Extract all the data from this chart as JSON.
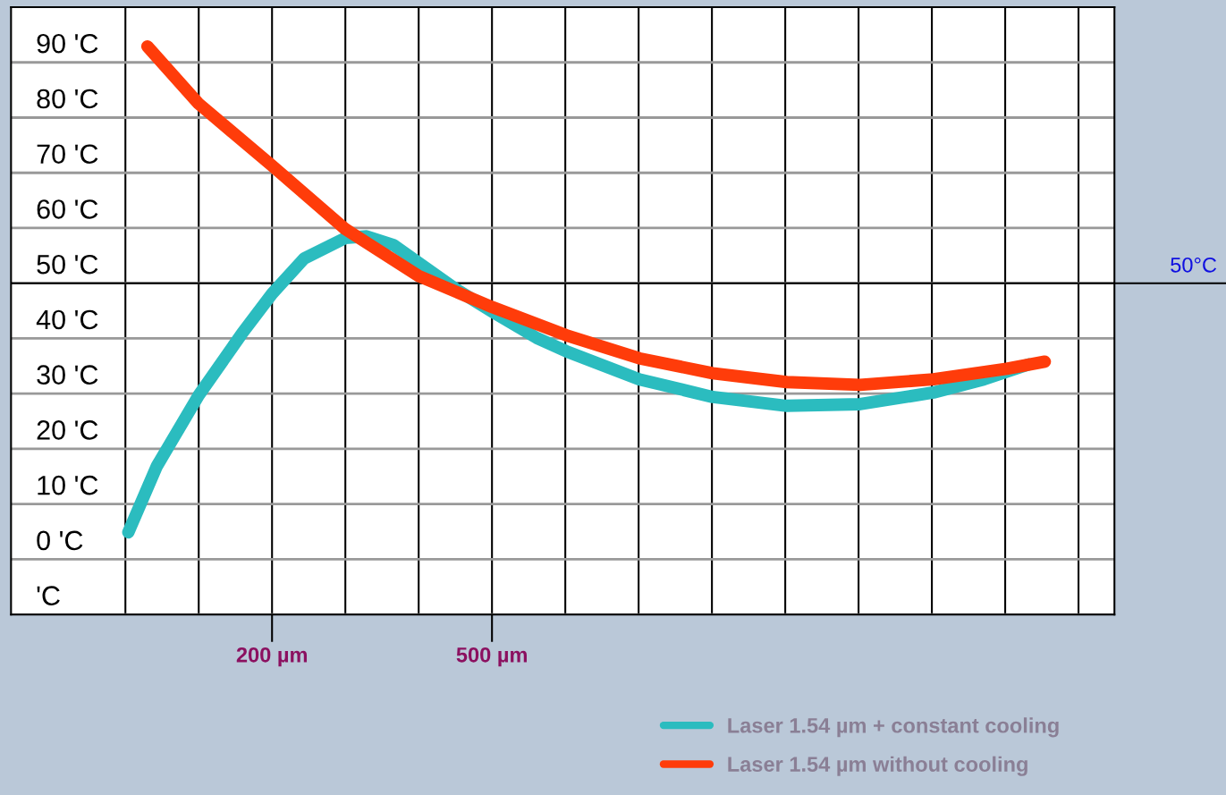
{
  "chart_data": {
    "type": "line",
    "xlim": [
      -156,
      1349
    ],
    "ylim": [
      -10,
      100
    ],
    "xticks": [
      {
        "value": 0,
        "label": null
      },
      {
        "value": 100,
        "label": null
      },
      {
        "value": 200,
        "label": "200 µm"
      },
      {
        "value": 300,
        "label": null
      },
      {
        "value": 400,
        "label": null
      },
      {
        "value": 500,
        "label": "500 µm"
      },
      {
        "value": 600,
        "label": null
      },
      {
        "value": 700,
        "label": null
      },
      {
        "value": 800,
        "label": null
      },
      {
        "value": 900,
        "label": null
      },
      {
        "value": 1000,
        "label": null
      },
      {
        "value": 1100,
        "label": null
      },
      {
        "value": 1200,
        "label": null
      },
      {
        "value": 1300,
        "label": null
      }
    ],
    "yticks": [
      {
        "value": -10,
        "label": "'C"
      },
      {
        "value": 0,
        "label": "0 'C"
      },
      {
        "value": 10,
        "label": "10 'C"
      },
      {
        "value": 20,
        "label": "20 'C"
      },
      {
        "value": 30,
        "label": "30 'C"
      },
      {
        "value": 40,
        "label": "40 'C"
      },
      {
        "value": 50,
        "label": "50 'C"
      },
      {
        "value": 60,
        "label": "60 'C"
      },
      {
        "value": 70,
        "label": "70 'C"
      },
      {
        "value": 80,
        "label": "80 'C"
      },
      {
        "value": 90,
        "label": "90 'C"
      }
    ],
    "grid": true,
    "legend": "bottom right",
    "line_style": "solid",
    "ref_lines": [
      {
        "axis": "y",
        "value": 50,
        "label": "50°C",
        "color": "#000000"
      }
    ],
    "series": [
      {
        "name": "Laser 1.54 µm + constant cooling",
        "color": "#2bbcbf",
        "x": [
          4,
          43,
          100,
          159,
          200,
          244,
          300,
          329,
          366,
          400,
          451,
          500,
          561,
          601,
          701,
          801,
          902,
          1002,
          1102,
          1171,
          1232
        ],
        "values": [
          4.9,
          16.9,
          29.7,
          40.9,
          48.1,
          54.5,
          58.2,
          58.5,
          56.9,
          53.7,
          48.9,
          44.9,
          40.1,
          37.7,
          32.6,
          29.4,
          27.8,
          28.1,
          30.2,
          32.6,
          35.3
        ]
      },
      {
        "name": "Laser 1.54 µm without cooling",
        "color": "#ff3c0a",
        "x": [
          30,
          100,
          200,
          300,
          400,
          500,
          601,
          701,
          801,
          902,
          1002,
          1102,
          1202,
          1254
        ],
        "values": [
          92.9,
          82.5,
          71.3,
          59.8,
          51.3,
          45.7,
          40.6,
          36.4,
          33.7,
          32.1,
          31.6,
          32.6,
          34.5,
          35.8
        ]
      }
    ]
  }
}
